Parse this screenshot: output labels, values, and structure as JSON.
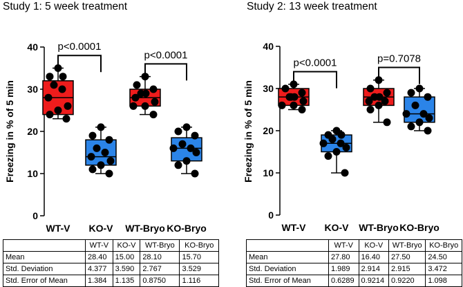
{
  "charts": [
    {
      "panel_title": "Study 1: 5 week treatment",
      "ylabel": "Freezing in % of 5 min",
      "comparisons": [
        "p<0.0001",
        "p<0.0001"
      ],
      "table": {
        "headers": [
          "",
          "WT-V",
          "KO-V",
          "WT-Bryo",
          "KO-Bryo"
        ],
        "rows": [
          [
            "Mean",
            "28.40",
            "15.00",
            "28.10",
            "15.70"
          ],
          [
            "Std. Deviation",
            "4.377",
            "3.590",
            "2.767",
            "3.529"
          ],
          [
            "Std. Error of Mean",
            "1.384",
            "1.135",
            "0.8750",
            "1.116"
          ]
        ]
      }
    },
    {
      "panel_title": "Study 2: 13 week treatment",
      "ylabel": "Freezing in % of 5 min",
      "comparisons": [
        "p<0.0001",
        "p=0.7078"
      ],
      "table": {
        "headers": [
          "",
          "WT-V",
          "KO-V",
          "WT-Bryo",
          "KO-Bryo"
        ],
        "rows": [
          [
            "Mean",
            "27.80",
            "16.40",
            "27.50",
            "24.50"
          ],
          [
            "Std. Deviation",
            "1.989",
            "2.914",
            "2.915",
            "3.472"
          ],
          [
            "Std. Error of Mean",
            "0.6289",
            "0.9214",
            "0.9220",
            "1.098"
          ]
        ]
      }
    }
  ],
  "colors": {
    "wt": "#ee1c1c",
    "ko": "#2b84e8",
    "point": "#000000"
  },
  "chart_data": [
    {
      "type": "box",
      "title": "Study 1: 5 week treatment",
      "ylabel": "Freezing in % of 5 min",
      "ylim": [
        0,
        40
      ],
      "yticks": [
        0,
        10,
        20,
        30,
        40
      ],
      "categories": [
        "WT-V",
        "KO-V",
        "WT-Bryo",
        "KO-Bryo"
      ],
      "boxes": [
        {
          "min": 23,
          "q1": 24,
          "median": 28,
          "q3": 32,
          "max": 35,
          "points": [
            35,
            33,
            33,
            31,
            30,
            28,
            26,
            25,
            24,
            23
          ]
        },
        {
          "min": 10,
          "q1": 12,
          "median": 14,
          "q3": 18,
          "max": 21,
          "points": [
            21,
            19,
            18,
            16,
            15,
            14,
            13,
            12,
            11,
            10
          ]
        },
        {
          "min": 24,
          "q1": 26,
          "median": 28,
          "q3": 30,
          "max": 33,
          "points": [
            33,
            31,
            30,
            29,
            29,
            28,
            27,
            26,
            26,
            24
          ]
        },
        {
          "min": 10,
          "q1": 13,
          "median": 16,
          "q3": 18.5,
          "max": 21,
          "points": [
            21,
            20,
            19,
            17,
            16,
            16,
            15,
            13,
            12,
            10
          ]
        }
      ],
      "comparisons": [
        {
          "from": "WT-V",
          "to": "KO-V",
          "label": "p<0.0001"
        },
        {
          "from": "WT-Bryo",
          "to": "KO-Bryo",
          "label": "p<0.0001"
        }
      ]
    },
    {
      "type": "box",
      "title": "Study 2: 13 week treatment",
      "ylabel": "Freezing in % of 5 min",
      "ylim": [
        0,
        40
      ],
      "yticks": [
        0,
        10,
        20,
        30,
        40
      ],
      "categories": [
        "WT-V",
        "KO-V",
        "WT-Bryo",
        "KO-Bryo"
      ],
      "boxes": [
        {
          "min": 25,
          "q1": 26,
          "median": 28,
          "q3": 30,
          "max": 31,
          "points": [
            31,
            30,
            29,
            28,
            28,
            28,
            27,
            26,
            26,
            25
          ]
        },
        {
          "min": 10,
          "q1": 15,
          "median": 17,
          "q3": 19,
          "max": 20,
          "points": [
            20,
            19,
            19,
            18,
            17,
            17,
            16,
            15,
            14,
            10
          ]
        },
        {
          "min": 22,
          "q1": 26,
          "median": 28,
          "q3": 30,
          "max": 32,
          "points": [
            32,
            30,
            29,
            28,
            28,
            27,
            27,
            26,
            25,
            22
          ]
        },
        {
          "min": 20,
          "q1": 22,
          "median": 24,
          "q3": 28,
          "max": 30,
          "points": [
            30,
            29,
            28,
            26,
            24,
            24,
            23,
            22,
            21,
            20
          ]
        }
      ],
      "comparisons": [
        {
          "from": "WT-V",
          "to": "KO-V",
          "label": "p<0.0001"
        },
        {
          "from": "WT-Bryo",
          "to": "KO-Bryo",
          "label": "p=0.7078"
        }
      ]
    }
  ]
}
